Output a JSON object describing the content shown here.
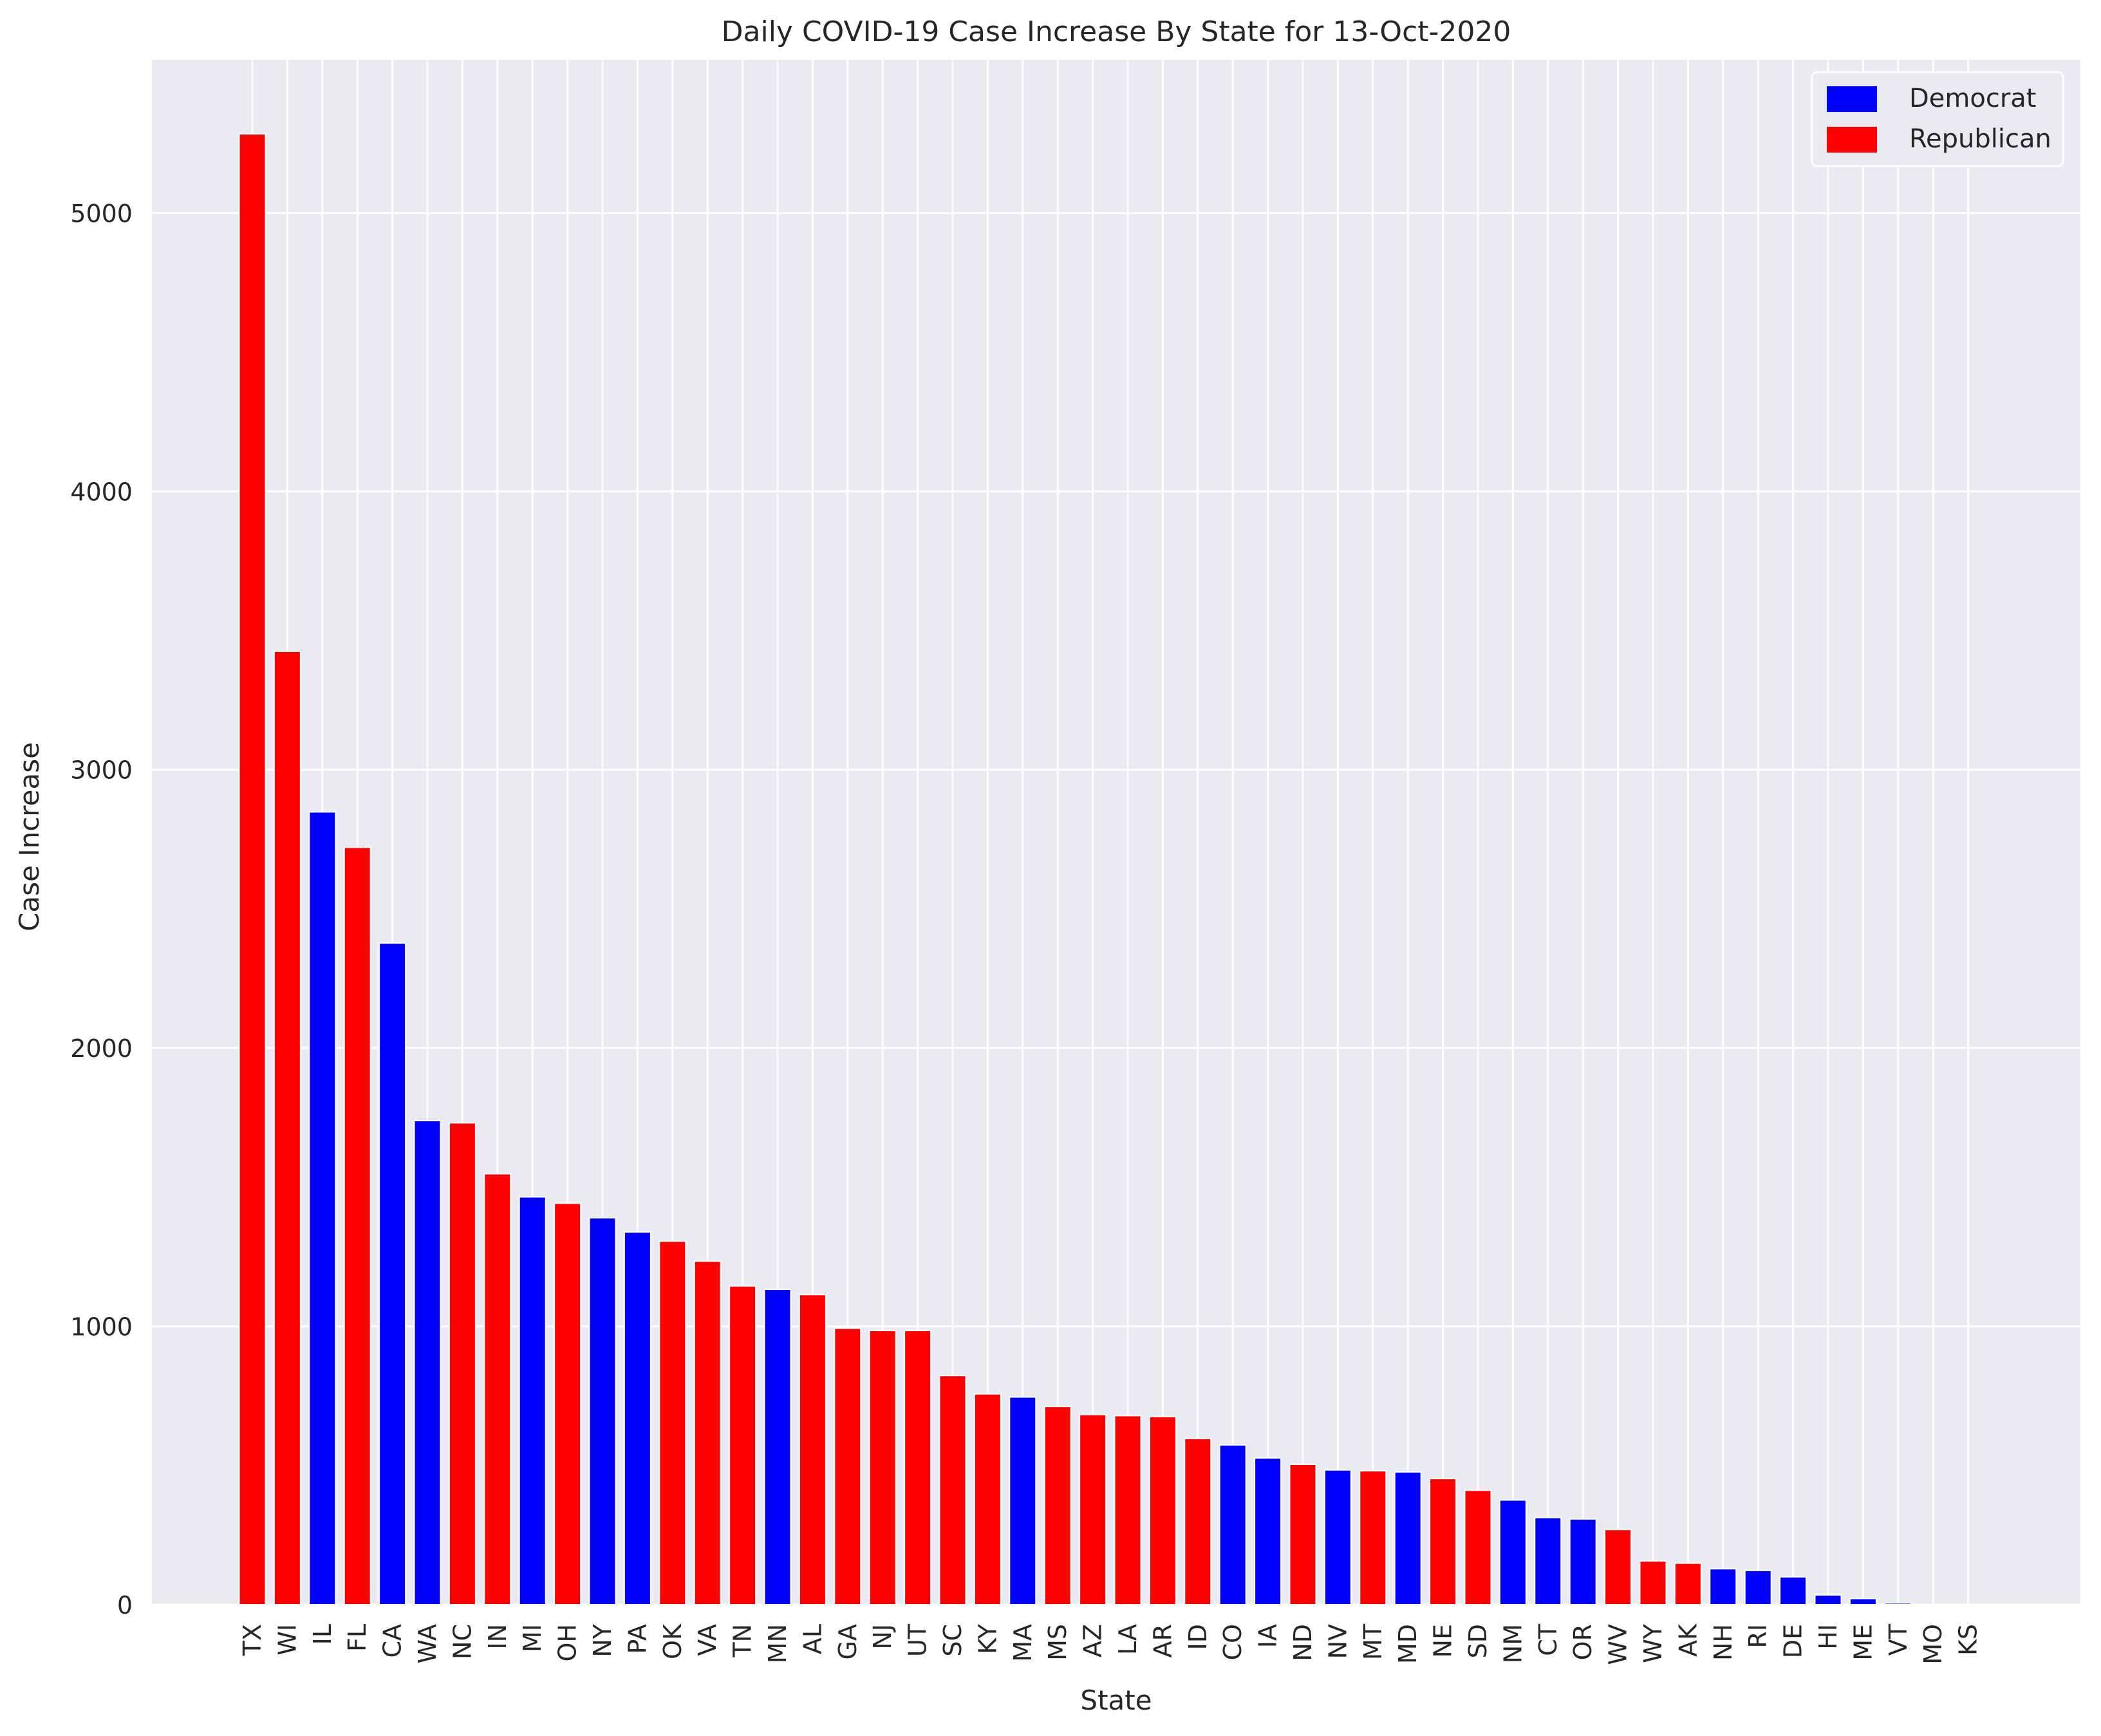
{
  "chart_data": {
    "type": "bar",
    "title": "Daily COVID-19 Case Increase By State for 13-Oct-2020",
    "xlabel": "State",
    "ylabel": "Case Increase",
    "ylim": [
      0,
      5550
    ],
    "yticks": [
      0,
      1000,
      2000,
      3000,
      4000,
      5000
    ],
    "grid": true,
    "legend_position": "top-right",
    "colors": {
      "Democrat": "#0000ff",
      "Republican": "#ff0000",
      "background": "#eaeaf2",
      "grid": "#ffffff"
    },
    "legend": [
      {
        "name": "Democrat",
        "color": "#0000ff"
      },
      {
        "name": "Republican",
        "color": "#ff0000"
      }
    ],
    "categories": [
      "TX",
      "WI",
      "IL",
      "FL",
      "CA",
      "WA",
      "NC",
      "IN",
      "MI",
      "OH",
      "NY",
      "PA",
      "OK",
      "VA",
      "TN",
      "MN",
      "AL",
      "GA",
      "NJ",
      "UT",
      "SC",
      "KY",
      "MA",
      "MS",
      "AZ",
      "LA",
      "AR",
      "ID",
      "CO",
      "IA",
      "ND",
      "NV",
      "MT",
      "MD",
      "NE",
      "SD",
      "NM",
      "CT",
      "OR",
      "WV",
      "WY",
      "AK",
      "NH",
      "RI",
      "DE",
      "HI",
      "ME",
      "VT",
      "MO",
      "KS"
    ],
    "values": [
      5284,
      3425,
      2848,
      2721,
      2377,
      1739,
      1731,
      1548,
      1465,
      1442,
      1390,
      1339,
      1306,
      1234,
      1145,
      1133,
      1114,
      993,
      985,
      985,
      823,
      757,
      746,
      712,
      683,
      679,
      676,
      597,
      574,
      527,
      504,
      484,
      481,
      477,
      453,
      411,
      376,
      313,
      308,
      270,
      157,
      149,
      129,
      123,
      100,
      35,
      22,
      6,
      0,
      0
    ],
    "parties": [
      "Republican",
      "Republican",
      "Democrat",
      "Republican",
      "Democrat",
      "Democrat",
      "Republican",
      "Republican",
      "Democrat",
      "Republican",
      "Democrat",
      "Democrat",
      "Republican",
      "Republican",
      "Republican",
      "Democrat",
      "Republican",
      "Republican",
      "Republican",
      "Republican",
      "Republican",
      "Republican",
      "Democrat",
      "Republican",
      "Republican",
      "Republican",
      "Republican",
      "Republican",
      "Democrat",
      "Democrat",
      "Republican",
      "Democrat",
      "Republican",
      "Democrat",
      "Republican",
      "Republican",
      "Democrat",
      "Democrat",
      "Democrat",
      "Republican",
      "Republican",
      "Republican",
      "Democrat",
      "Democrat",
      "Democrat",
      "Democrat",
      "Democrat",
      "Democrat",
      "Republican",
      "Republican"
    ]
  }
}
